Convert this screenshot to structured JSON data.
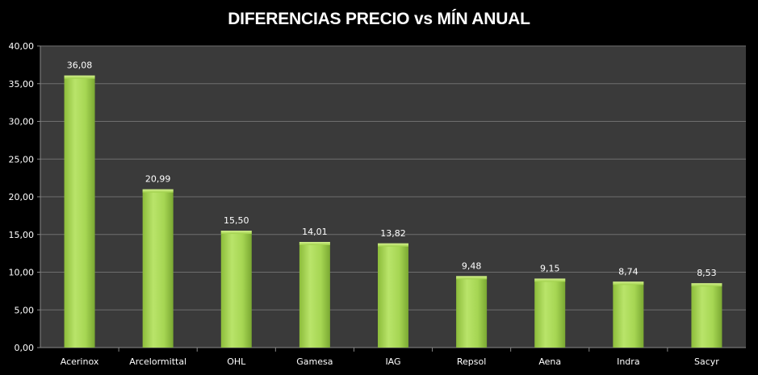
{
  "chart_data": {
    "type": "bar",
    "title": "DIFERENCIAS PRECIO vs MÍN ANUAL",
    "categories": [
      "Acerinox",
      "Arcelormittal",
      "OHL",
      "Gamesa",
      "IAG",
      "Repsol",
      "Aena",
      "Indra",
      "Sacyr"
    ],
    "values": [
      36.08,
      20.99,
      15.5,
      14.01,
      13.82,
      9.48,
      9.15,
      8.74,
      8.53
    ],
    "data_labels": [
      "36,08",
      "20,99",
      "15,50",
      "14,01",
      "13,82",
      "9,48",
      "9,15",
      "8,74",
      "8,53"
    ],
    "yticks": [
      "0,00",
      "5,00",
      "10,00",
      "15,00",
      "20,00",
      "25,00",
      "30,00",
      "35,00",
      "40,00"
    ],
    "ylim": [
      0,
      40
    ],
    "grid": true,
    "legend": "none",
    "colors": {
      "plot_background": "#3a3a3a",
      "page_background": "#000000",
      "grid": "#6e6e6e",
      "bar_light": "#b9e46a",
      "bar_mid": "#9fd04a",
      "bar_dark": "#6f9a2a",
      "text": "#ffffff"
    }
  }
}
